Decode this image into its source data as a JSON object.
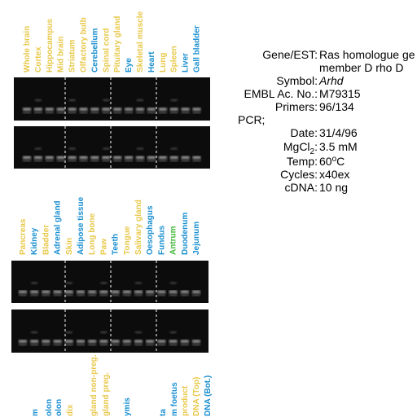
{
  "panels": [
    {
      "lanes": [
        {
          "label": "Whole brain",
          "color": "#e8c84a"
        },
        {
          "label": "Cortex",
          "color": "#e8c84a"
        },
        {
          "label": "Hippocampus",
          "color": "#e8c84a"
        },
        {
          "label": "Mid brain",
          "color": "#e8c84a"
        },
        {
          "label": "Striatum",
          "color": "#e8c84a"
        },
        {
          "label": "Olfactory bulb",
          "color": "#e8c84a"
        },
        {
          "label": "Cerebellum",
          "color": "#1a8fd0"
        },
        {
          "label": "Spinal cord",
          "color": "#e8c84a"
        },
        {
          "label": "Pituitary gland",
          "color": "#e8c84a"
        },
        {
          "label": "Eye",
          "color": "#1a8fd0"
        },
        {
          "label": "Skeletal muscle",
          "color": "#e8c84a"
        },
        {
          "label": "Heart",
          "color": "#1a8fd0"
        },
        {
          "label": "Lung",
          "color": "#e8c84a"
        },
        {
          "label": "Spleen",
          "color": "#e8c84a"
        },
        {
          "label": "Liver",
          "color": "#1a8fd0"
        },
        {
          "label": "Gall bladder",
          "color": "#1a8fd0"
        }
      ]
    },
    {
      "lanes": [
        {
          "label": "Pancreas",
          "color": "#e8c84a"
        },
        {
          "label": "Kidney",
          "color": "#1a8fd0"
        },
        {
          "label": "Bladder",
          "color": "#e8c84a"
        },
        {
          "label": "Adrenal gland",
          "color": "#1a8fd0"
        },
        {
          "label": "Skin",
          "color": "#e8c84a"
        },
        {
          "label": "Adipose tissue",
          "color": "#1a8fd0"
        },
        {
          "label": "Long bone",
          "color": "#e8c84a"
        },
        {
          "label": "Paw",
          "color": "#e8c84a"
        },
        {
          "label": "Teeth",
          "color": "#1a8fd0"
        },
        {
          "label": "Tongue",
          "color": "#e8c84a"
        },
        {
          "label": "Salivary gland",
          "color": "#e8c84a"
        },
        {
          "label": "Oesophagus",
          "color": "#1a8fd0"
        },
        {
          "label": "Fundus",
          "color": "#1a8fd0"
        },
        {
          "label": "Antrum",
          "color": "#44b83a"
        },
        {
          "label": "Duodenum",
          "color": "#1a8fd0"
        },
        {
          "label": "Jejunum",
          "color": "#1a8fd0"
        }
      ]
    },
    {
      "lanes": [
        {
          "label": "m",
          "color": "#1a8fd0"
        },
        {
          "label": "olon",
          "color": "#1a8fd0"
        },
        {
          "label": "olon",
          "color": "#1a8fd0"
        },
        {
          "label": "dix",
          "color": "#e8c84a"
        },
        {
          "label": "gland non-preg.",
          "color": "#e8c84a"
        },
        {
          "label": "gland preg.",
          "color": "#e8c84a"
        },
        {
          "label": "ymis",
          "color": "#1a8fd0"
        },
        {
          "label": "ta",
          "color": "#1a8fd0"
        },
        {
          "label": "m foetus",
          "color": "#1a8fd0"
        },
        {
          "label": "product",
          "color": "#e8c84a"
        },
        {
          "label": "DNA (Top)",
          "color": "#e8c84a"
        },
        {
          "label": "DNA (Bot.)",
          "color": "#1a8fd0"
        }
      ]
    }
  ],
  "info": {
    "gene_label": "Gene/EST:",
    "gene_line1": "Ras homologue ge",
    "gene_line2": "member D rho D",
    "symbol_label": "Symbol:",
    "symbol": "Arhd",
    "embl_label": "EMBL Ac. No.:",
    "embl": "M79315",
    "primers_label": "Primers:",
    "primers": "96/134",
    "pcr": "PCR;",
    "date_label": "Date:",
    "date": "31/4/96",
    "mgcl_label": "MgCl",
    "mgcl_sub": "2",
    "mgcl_colon": ":",
    "mgcl": "3.5 mM",
    "temp_label": "Temp:",
    "temp_num": "60",
    "temp_sup": "o",
    "temp_unit": "C",
    "cycles_label": "Cycles:",
    "cycles": "x40ex",
    "cdna_label": "cDNA:",
    "cdna": "10 ng"
  }
}
